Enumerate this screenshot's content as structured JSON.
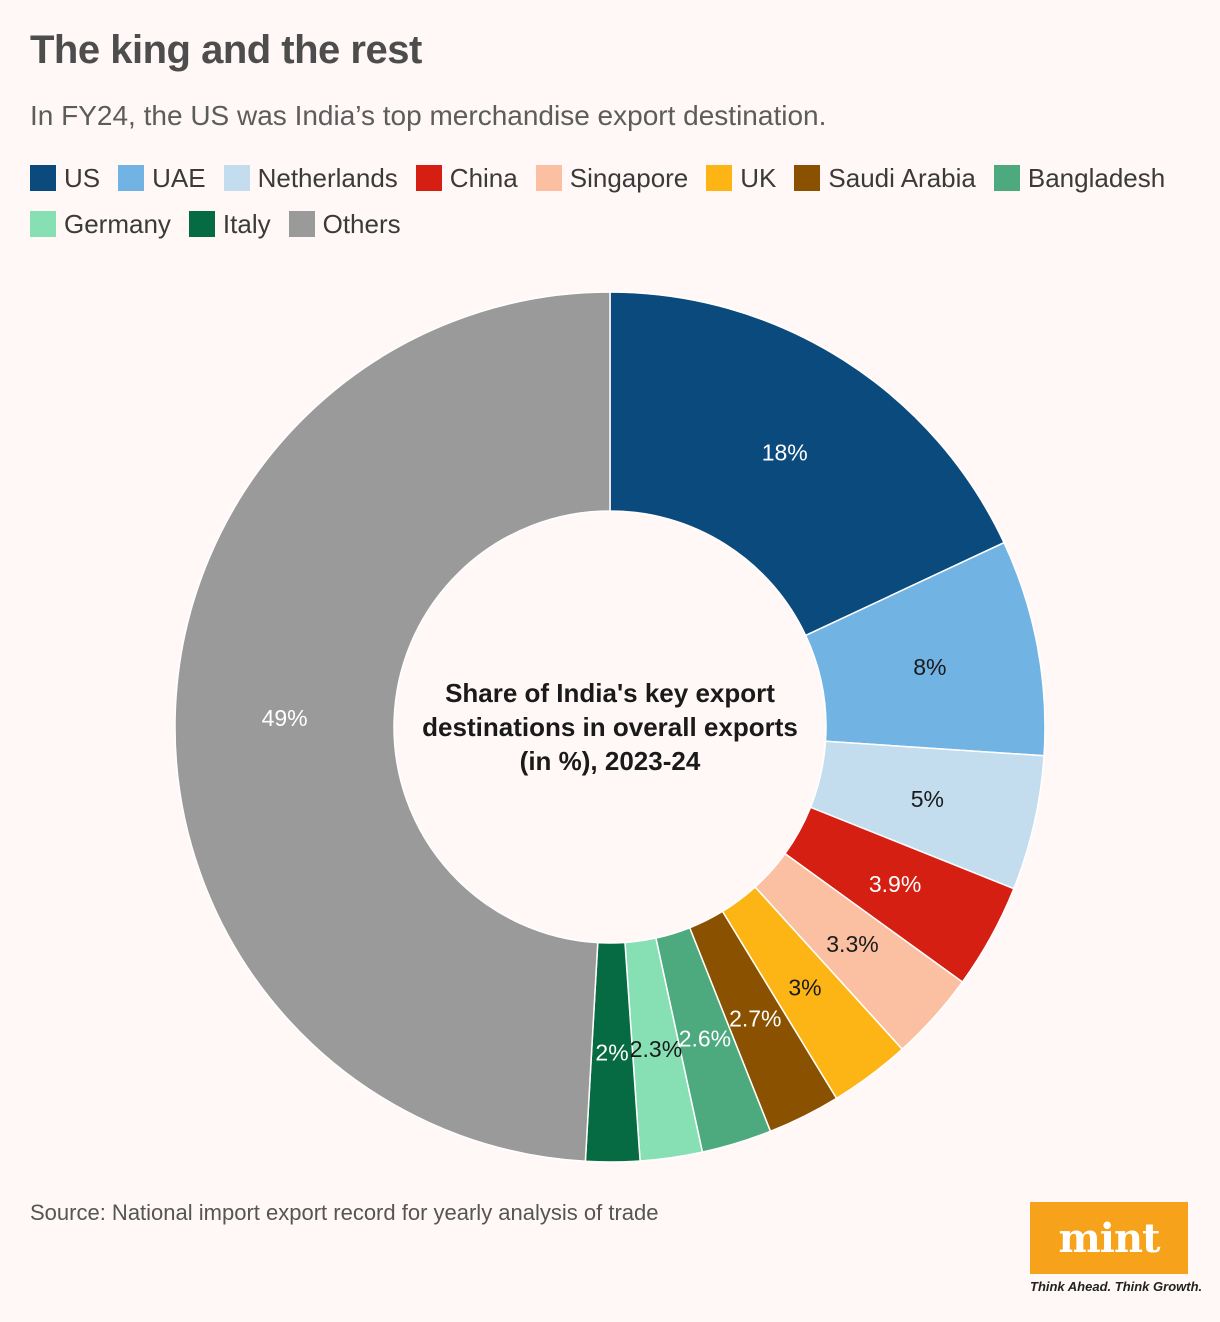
{
  "header": {
    "title": "The king and the rest",
    "subtitle": "In FY24, the US was India’s top merchandise export destination."
  },
  "chart_data": {
    "type": "pie",
    "variant": "donut",
    "center_label": [
      "Share of India's key export",
      "destinations in overall exports",
      "(in %), 2023-24"
    ],
    "categories": [
      "US",
      "UAE",
      "Netherlands",
      "China",
      "Singapore",
      "UK",
      "Saudi Arabia",
      "Bangladesh",
      "Germany",
      "Italy",
      "Others"
    ],
    "values": [
      18,
      8,
      5,
      3.9,
      3.3,
      3,
      2.7,
      2.6,
      2.3,
      2,
      49
    ],
    "value_labels": [
      "18%",
      "8%",
      "5%",
      "3.9%",
      "3.3%",
      "3%",
      "2.7%",
      "2.6%",
      "2.3%",
      "2%",
      "49%"
    ],
    "colors": [
      "#0b4a7c",
      "#71b3e3",
      "#c3ddef",
      "#d41f12",
      "#fbbfa2",
      "#fdb515",
      "#8a5200",
      "#4caa7e",
      "#86e0b3",
      "#066b43",
      "#9a9a9a"
    ],
    "label_colors": [
      "#ffffff",
      "#1a1a1a",
      "#1a1a1a",
      "#ffffff",
      "#1a1a1a",
      "#1a1a1a",
      "#ffffff",
      "#ffffff",
      "#1a1a1a",
      "#ffffff",
      "#ffffff"
    ],
    "legend_position": "top-left"
  },
  "footer": {
    "source": "Source: National import export record for yearly analysis of trade",
    "logo_text": "mint",
    "tagline": "Think Ahead. Think Growth."
  }
}
